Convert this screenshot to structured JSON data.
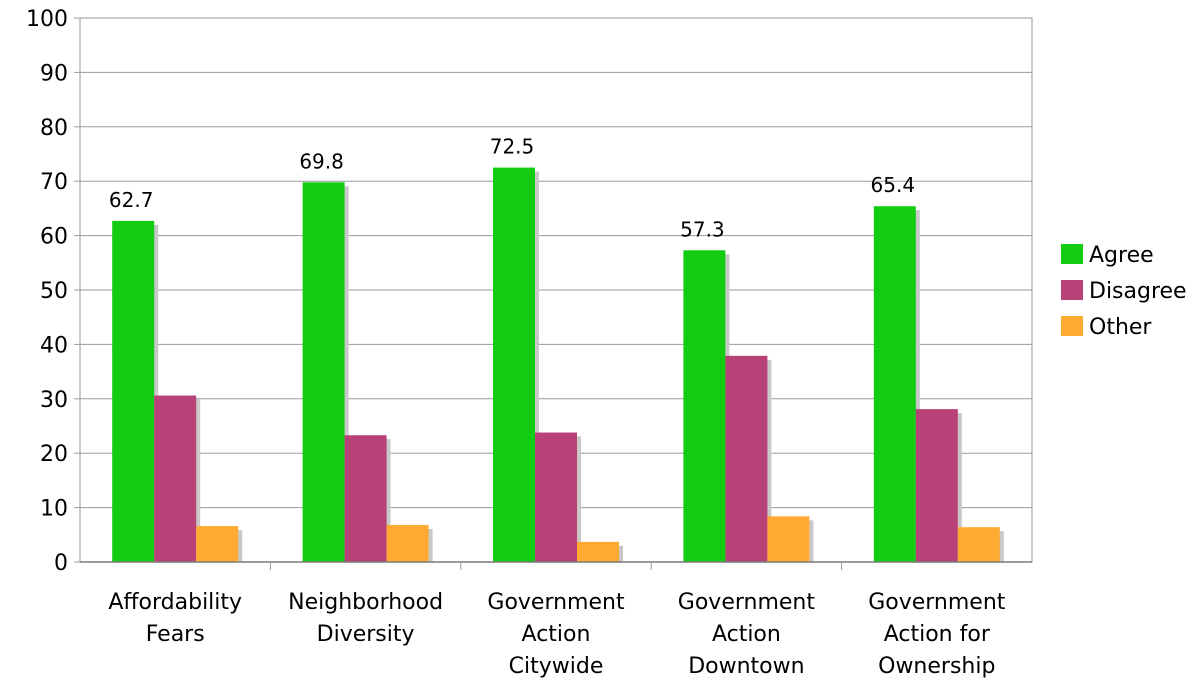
{
  "chart_data": {
    "type": "bar",
    "title": "",
    "xlabel": "",
    "ylabel": "",
    "ylim": [
      0,
      100
    ],
    "yticks": [
      0,
      10,
      20,
      30,
      40,
      50,
      60,
      70,
      80,
      90,
      100
    ],
    "grid": true,
    "legend_position": "right",
    "categories": [
      [
        "Affordability",
        "Fears"
      ],
      [
        "Neighborhood",
        "Diversity"
      ],
      [
        "Government",
        "Action",
        "Citywide"
      ],
      [
        "Government",
        "Action",
        "Downtown"
      ],
      [
        "Government",
        "Action for",
        "Ownership"
      ]
    ],
    "series": [
      {
        "name": "Agree",
        "color": "#11cc11",
        "values": [
          62.7,
          69.8,
          72.5,
          57.3,
          65.4
        ],
        "labels": [
          "62.7",
          "69.8",
          "72.5",
          "57.3",
          "65.4"
        ]
      },
      {
        "name": "Disagree",
        "color": "#b84177",
        "values": [
          30.6,
          23.3,
          23.8,
          37.9,
          28.1
        ]
      },
      {
        "name": "Other",
        "color": "#ffaa33",
        "values": [
          6.6,
          6.8,
          3.7,
          8.4,
          6.4
        ]
      }
    ]
  }
}
